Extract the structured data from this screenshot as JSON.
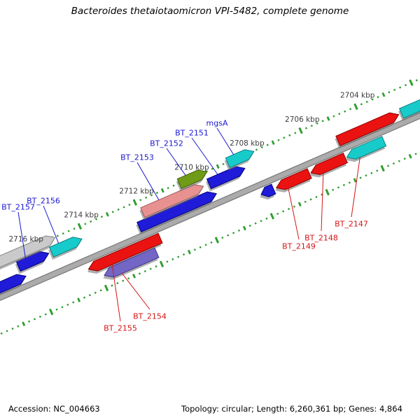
{
  "title": "Bacteroides thetaiotaomicron VPI-5482, complete genome",
  "footer": {
    "accession": "Accession: NC_004663",
    "summary": "Topology: circular; Length: 6,260,361 bp; Genes: 4,864"
  },
  "ruler": {
    "unit_suffix": " kbp",
    "labeled_ticks": [
      2704,
      2706,
      2708,
      2710,
      2712,
      2714,
      2716
    ],
    "tick_color": "#2f9e2f",
    "label_color": "#3c3c3c"
  },
  "colors": {
    "backbone_fill": "#ababab",
    "backbone_edge": "#787878",
    "shadow": "#6e6e6e",
    "label_blue": "#1a18cf",
    "label_red": "#d31616",
    "fills": {
      "blue": "#1f1bd8",
      "cyan": "#18cbcb",
      "red": "#ea1312",
      "gray": "#cacaca",
      "salmon": "#e79191",
      "olive": "#6f9b17",
      "purple": "#7466c4"
    },
    "strokes": {
      "blue": "#000080",
      "cyan": "#0b8080",
      "red": "#8e0000",
      "gray": "#858585",
      "salmon": "#9e5757",
      "olive": "#44610c",
      "purple": "#41368c"
    }
  },
  "genes": [
    {
      "id": "gblueB",
      "label": "",
      "label_color": "",
      "strand": "+",
      "start_kbp": 2716.3,
      "end_kbp": 2717.8,
      "color": "blue",
      "lane": 1
    },
    {
      "id": "bt2157",
      "label": "BT_2157",
      "label_color": "blue",
      "strand": "+",
      "start_kbp": 2715.3,
      "end_kbp": 2716.4,
      "color": "blue",
      "lane": 2
    },
    {
      "id": "grayL",
      "label": "",
      "label_color": "",
      "strand": "+",
      "start_kbp": 2714.9,
      "end_kbp": 2717.6,
      "color": "gray",
      "lane": 3
    },
    {
      "id": "bt2156",
      "label": "BT_2156",
      "label_color": "blue",
      "strand": "+",
      "start_kbp": 2714.1,
      "end_kbp": 2715.2,
      "color": "cyan",
      "lane": 2
    },
    {
      "id": "blueLong",
      "label": "",
      "label_color": "",
      "strand": "+",
      "start_kbp": 2709.4,
      "end_kbp": 2712.2,
      "color": "blue",
      "lane": 1
    },
    {
      "id": "bt2153",
      "label": "BT_2153",
      "label_color": "blue",
      "strand": "+",
      "start_kbp": 2709.7,
      "end_kbp": 2711.9,
      "color": "salmon",
      "lane": 2
    },
    {
      "id": "bt2152",
      "label": "BT_2152",
      "label_color": "blue",
      "strand": "+",
      "start_kbp": 2709.4,
      "end_kbp": 2710.4,
      "color": "olive",
      "lane": 3
    },
    {
      "id": "bt2151",
      "label": "BT_2151",
      "label_color": "blue",
      "strand": "+",
      "start_kbp": 2708.2,
      "end_kbp": 2709.5,
      "color": "blue",
      "lane": 2
    },
    {
      "id": "mgsA",
      "label": "mgsA",
      "label_color": "blue",
      "strand": "+",
      "start_kbp": 2707.7,
      "end_kbp": 2708.65,
      "color": "cyan",
      "lane": 3
    },
    {
      "id": "redTR",
      "label": "",
      "label_color": "",
      "strand": "+",
      "start_kbp": 2702.8,
      "end_kbp": 2705.0,
      "color": "red",
      "lane": 1
    },
    {
      "id": "cyanTR",
      "label": "",
      "label_color": "",
      "strand": "+",
      "start_kbp": 2701.7,
      "end_kbp": 2702.7,
      "color": "cyan",
      "lane": 1
    },
    {
      "id": "bt2155",
      "label": "BT_2155",
      "label_color": "red",
      "strand": "-",
      "start_kbp": 2711.7,
      "end_kbp": 2714.3,
      "color": "red",
      "lane": 1
    },
    {
      "id": "bt2154",
      "label": "BT_2154",
      "label_color": "red",
      "strand": "-",
      "start_kbp": 2712.0,
      "end_kbp": 2713.9,
      "color": "purple",
      "lane": 2
    },
    {
      "id": "blueSmall",
      "label": "",
      "label_color": "",
      "strand": "-",
      "start_kbp": 2707.6,
      "end_kbp": 2708.05,
      "color": "blue",
      "lane": 1
    },
    {
      "id": "bt2149",
      "label": "BT_2149",
      "label_color": "red",
      "strand": "-",
      "start_kbp": 2706.3,
      "end_kbp": 2707.5,
      "color": "red",
      "lane": 1
    },
    {
      "id": "bt2148",
      "label": "BT_2148",
      "label_color": "red",
      "strand": "-",
      "start_kbp": 2705.0,
      "end_kbp": 2706.25,
      "color": "red",
      "lane": 1
    },
    {
      "id": "bt2147",
      "label": "BT_2147",
      "label_color": "red",
      "strand": "-",
      "start_kbp": 2703.6,
      "end_kbp": 2704.95,
      "color": "cyan",
      "lane": 1
    }
  ]
}
